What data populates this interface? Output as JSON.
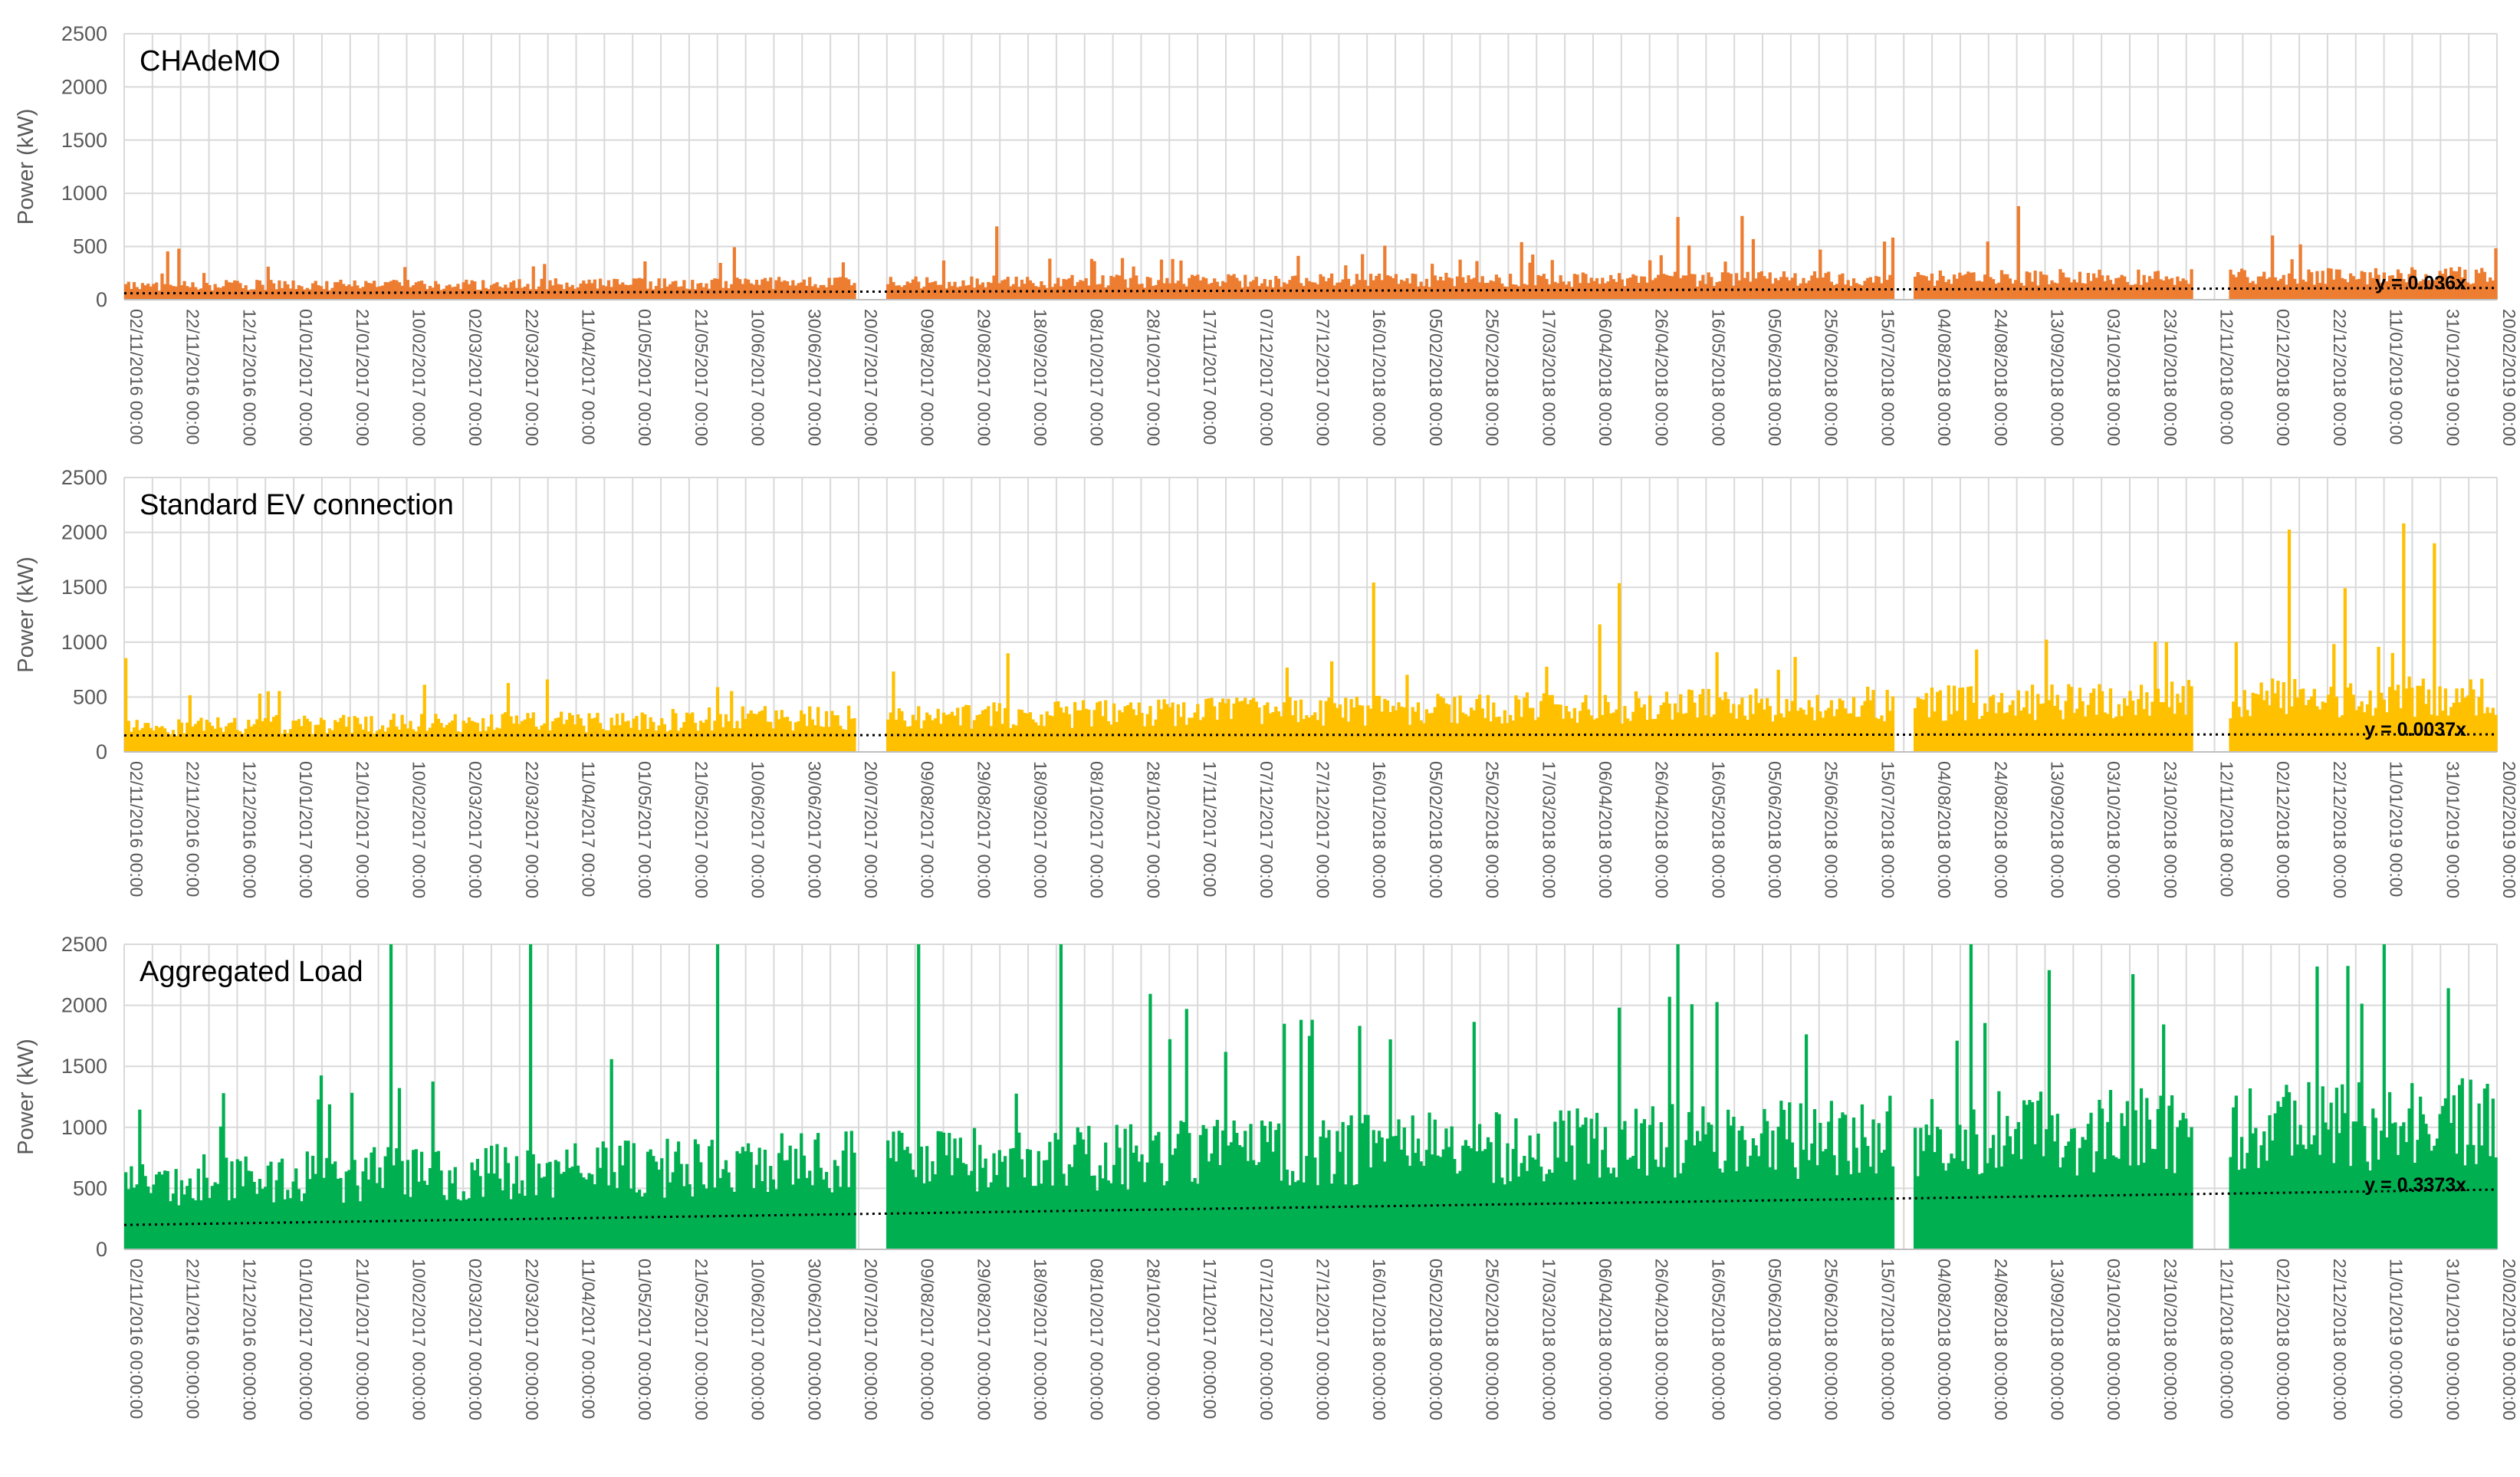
{
  "colors": {
    "chademo": "#ED7D31",
    "standard": "#FFC000",
    "aggregated": "#00B050",
    "grid": "#D9D9D9",
    "axis": "#BFBFBF",
    "trend": "#000000"
  },
  "chart_data": [
    {
      "type": "bar",
      "title": "CHAdeMO",
      "ylabel": "Power (kW)",
      "ylim": [
        0,
        2500
      ],
      "yticks": [
        "0",
        "500",
        "1000",
        "1500",
        "2000",
        "2500"
      ],
      "x_start": "02/11/2016",
      "x_end": "20/02/2019",
      "xtick_labels": [
        "02/11/2016 00:00",
        "22/11/2016 00:00",
        "12/12/2016 00:00",
        "01/01/2017 00:00",
        "21/01/2017 00:00",
        "10/02/2017 00:00",
        "02/03/2017 00:00",
        "22/03/2017 00:00",
        "11/04/2017 00:00",
        "01/05/2017 00:00",
        "21/05/2017 00:00",
        "10/06/2017 00:00",
        "30/06/2017 00:00",
        "20/07/2017 00:00",
        "09/08/2017 00:00",
        "29/08/2017 00:00",
        "18/09/2017 00:00",
        "08/10/2017 00:00",
        "28/10/2017 00:00",
        "17/11/2017 00:00",
        "07/12/2017 00:00",
        "27/12/2017 00:00",
        "16/01/2018 00:00",
        "05/02/2018 00:00",
        "25/02/2018 00:00",
        "17/03/2018 00:00",
        "06/04/2018 00:00",
        "26/04/2018 00:00",
        "16/05/2018 00:00",
        "05/06/2018 00:00",
        "25/06/2018 00:00",
        "15/07/2018 00:00",
        "04/08/2018 00:00",
        "24/08/2018 00:00",
        "13/09/2018 00:00",
        "03/10/2018 00:00",
        "23/10/2018 00:00",
        "12/11/2018 00:00",
        "02/12/2018 00:00",
        "22/12/2018 00:00",
        "11/01/2019 00:00",
        "31/01/2019 00:00",
        "20/02/2019 00:00"
      ],
      "series": [
        {
          "values_summary": "daily peak power, baseline ~200-350 kW, peaks up to ~950 kW"
        }
      ],
      "trendline": {
        "label": "y = 0.036x",
        "start_value": 60,
        "end_value": 110
      }
    },
    {
      "type": "bar",
      "title": "Standard EV connection",
      "ylabel": "Power (kW)",
      "ylim": [
        0,
        2500
      ],
      "yticks": [
        "0",
        "500",
        "1000",
        "1500",
        "2000",
        "2500"
      ],
      "x_start": "02/11/2016",
      "x_end": "20/02/2019",
      "xtick_labels": [
        "02/11/2016 00:00",
        "22/11/2016 00:00",
        "12/12/2016 00:00",
        "01/01/2017 00:00",
        "21/01/2017 00:00",
        "10/02/2017 00:00",
        "02/03/2017 00:00",
        "22/03/2017 00:00",
        "11/04/2017 00:00",
        "01/05/2017 00:00",
        "21/05/2017 00:00",
        "10/06/2017 00:00",
        "30/06/2017 00:00",
        "20/07/2017 00:00",
        "09/08/2017 00:00",
        "29/08/2017 00:00",
        "18/09/2017 00:00",
        "08/10/2017 00:00",
        "28/10/2017 00:00",
        "17/11/2017 00:00",
        "07/12/2017 00:00",
        "27/12/2017 00:00",
        "16/01/2018 00:00",
        "05/02/2018 00:00",
        "25/02/2018 00:00",
        "17/03/2018 00:00",
        "06/04/2018 00:00",
        "26/04/2018 00:00",
        "16/05/2018 00:00",
        "05/06/2018 00:00",
        "25/06/2018 00:00",
        "15/07/2018 00:00",
        "04/08/2018 00:00",
        "24/08/2018 00:00",
        "13/09/2018 00:00",
        "03/10/2018 00:00",
        "23/10/2018 00:00",
        "12/11/2018 00:00",
        "02/12/2018 00:00",
        "22/12/2018 00:00",
        "11/01/2019 00:00",
        "31/01/2019 00:00",
        "20/02/2019 00:00"
      ],
      "series": [
        {
          "values_summary": "daily peak power, baseline ~300-700 kW, peaks up to ~1300 kW"
        }
      ],
      "trendline": {
        "label": "y = 0.0037x",
        "start_value": 150,
        "end_value": 160
      }
    },
    {
      "type": "bar",
      "title": "Aggregated Load",
      "ylabel": "Power (kW)",
      "ylim": [
        0,
        2500
      ],
      "yticks": [
        "0",
        "500",
        "1000",
        "1500",
        "2000",
        "2500"
      ],
      "x_start": "02/11/2016",
      "x_end": "20/02/2019",
      "xtick_labels": [
        "02/11/2016 00:00:00",
        "22/11/2016 00:00:00",
        "12/12/2016 00:00:00",
        "01/01/2017 00:00:00",
        "21/01/2017 00:00:00",
        "10/02/2017 00:00:00",
        "02/03/2017 00:00:00",
        "22/03/2017 00:00:00",
        "11/04/2017 00:00:00",
        "01/05/2017 00:00:00",
        "21/05/2017 00:00:00",
        "10/06/2017 00:00:00",
        "30/06/2017 00:00:00",
        "20/07/2017 00:00:00",
        "09/08/2017 00:00:00",
        "29/08/2017 00:00:00",
        "18/09/2017 00:00:00",
        "08/10/2017 00:00:00",
        "28/10/2017 00:00:00",
        "17/11/2017 00:00:00",
        "07/12/2017 00:00:00",
        "27/12/2017 00:00:00",
        "16/01/2018 00:00:00",
        "05/02/2018 00:00:00",
        "25/02/2018 00:00:00",
        "17/03/2018 00:00:00",
        "06/04/2018 00:00:00",
        "26/04/2018 00:00:00",
        "16/05/2018 00:00:00",
        "05/06/2018 00:00:00",
        "25/06/2018 00:00:00",
        "15/07/2018 00:00:00",
        "04/08/2018 00:00:00",
        "24/08/2018 00:00:00",
        "13/09/2018 00:00:00",
        "03/10/2018 00:00:00",
        "23/10/2018 00:00:00",
        "12/11/2018 00:00:00",
        "02/12/2018 00:00:00",
        "22/12/2018 00:00:00",
        "11/01/2019 00:00:00",
        "31/01/2019 00:00:00",
        "20/02/2019 00:00:00"
      ],
      "series": [
        {
          "values_summary": "daily peak power, baseline ~700-1300 kW, peaks up to ~2500 kW"
        }
      ],
      "trendline": {
        "label": "y = 0.3373x",
        "start_value": 200,
        "end_value": 490
      }
    }
  ]
}
